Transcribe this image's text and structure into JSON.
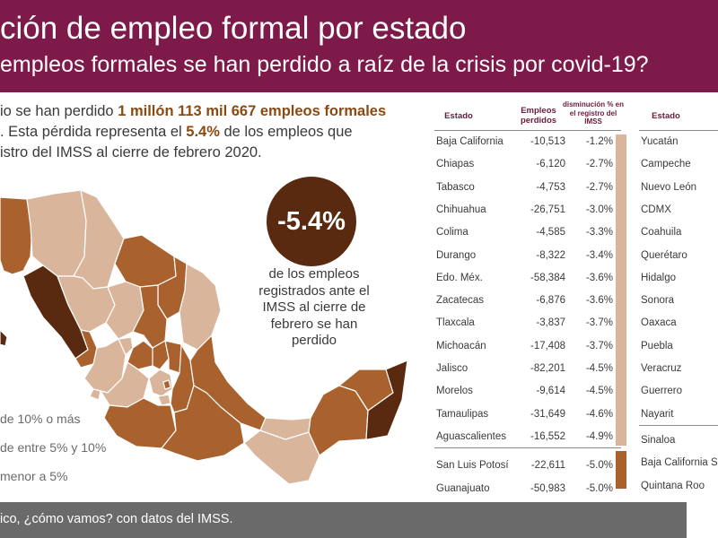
{
  "header": {
    "title": "ción de empleo formal por estado",
    "subtitle": "empleos formales se han perdido a raíz de la crisis por covid-19?"
  },
  "intro": {
    "l1a": "io se han perdido ",
    "l1b": "1 millón 113 mil 667 empleos formales",
    "l2a": ". Esta pérdida representa el ",
    "l2b": "5.4%",
    "l2c": " de los empleos que",
    "l3": "istro del IMSS al cierre de febrero 2020."
  },
  "highlight": {
    "value": "-5.4%",
    "caption": "de los empleos registrados ante el IMSS al cierre de febrero se han perdido"
  },
  "legend": [
    {
      "label": "de 10% o más"
    },
    {
      "label": "de entre 5% y 10%"
    },
    {
      "label": "menor a 5%"
    }
  ],
  "colors": {
    "dark": "#5a2a10",
    "mid": "#a9622e",
    "light": "#d9b59c",
    "header": "#7d1a4a"
  },
  "table1": {
    "headers": {
      "estado": "Estado",
      "empleos": "Empleos perdidos",
      "disminucion": "disminución % en el registro del IMSS"
    },
    "rows": [
      {
        "estado": "Baja California",
        "empleos": "-10,513",
        "pct": "-1.2%"
      },
      {
        "estado": "Chiapas",
        "empleos": "-6,120",
        "pct": "-2.7%"
      },
      {
        "estado": "Tabasco",
        "empleos": "-4,753",
        "pct": "-2.7%"
      },
      {
        "estado": "Chihuahua",
        "empleos": "-26,751",
        "pct": "-3.0%"
      },
      {
        "estado": "Colima",
        "empleos": "-4,585",
        "pct": "-3.3%"
      },
      {
        "estado": "Durango",
        "empleos": "-8,322",
        "pct": "-3.4%"
      },
      {
        "estado": "Edo. Méx.",
        "empleos": "-58,384",
        "pct": "-3.6%"
      },
      {
        "estado": "Zacatecas",
        "empleos": "-6,876",
        "pct": "-3.6%"
      },
      {
        "estado": "Tlaxcala",
        "empleos": "-3,837",
        "pct": "-3.7%"
      },
      {
        "estado": "Michoacán",
        "empleos": "-17,408",
        "pct": "-3.7%"
      },
      {
        "estado": "Jalisco",
        "empleos": "-82,201",
        "pct": "-4.5%"
      },
      {
        "estado": "Morelos",
        "empleos": "-9,614",
        "pct": "-4.5%"
      },
      {
        "estado": "Tamaulipas",
        "empleos": "-31,649",
        "pct": "-4.6%"
      },
      {
        "estado": "Aguascalientes",
        "empleos": "-16,552",
        "pct": "-4.9%"
      },
      {
        "estado": "San Luis Potosí",
        "empleos": "-22,611",
        "pct": "-5.0%"
      },
      {
        "estado": "Guanajuato",
        "empleos": "-50,983",
        "pct": "-5.0%"
      }
    ]
  },
  "table2": {
    "headers": {
      "estado": "Estado"
    },
    "rows": [
      {
        "estado": "Yucatán"
      },
      {
        "estado": "Campeche"
      },
      {
        "estado": "Nuevo León"
      },
      {
        "estado": "CDMX"
      },
      {
        "estado": "Coahuila"
      },
      {
        "estado": "Querétaro"
      },
      {
        "estado": "Hidalgo"
      },
      {
        "estado": "Sonora"
      },
      {
        "estado": "Oaxaca"
      },
      {
        "estado": "Puebla"
      },
      {
        "estado": "Veracruz"
      },
      {
        "estado": "Guerrero"
      },
      {
        "estado": "Nayarit"
      },
      {
        "estado": "Sinaloa"
      },
      {
        "estado": "Baja California S"
      },
      {
        "estado": "Quintana Roo"
      }
    ]
  },
  "footer": {
    "source": "ico, ¿cómo vamos? con datos del IMSS."
  }
}
